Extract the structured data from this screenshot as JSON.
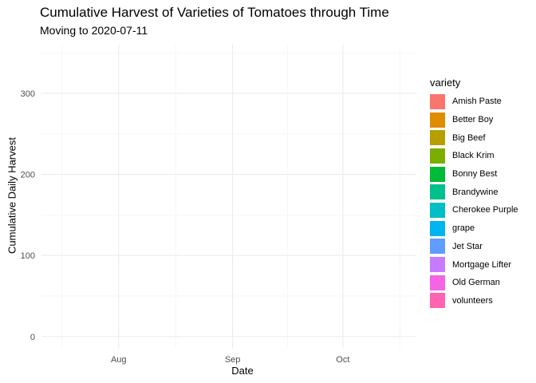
{
  "chart_data": {
    "type": "area",
    "title": "Cumulative Harvest of Varieties of Tomatoes through Time",
    "subtitle": "Moving to 2020-07-11",
    "xlabel": "Date",
    "ylabel": "Cumulative Daily Harvest",
    "x_ticks": [
      "Aug",
      "Sep",
      "Oct"
    ],
    "x_range": [
      "2020-07-11",
      "2020-10-21"
    ],
    "x_tick_dates": [
      "2020-08-01",
      "2020-09-01",
      "2020-10-01"
    ],
    "ylim": [
      -15,
      360
    ],
    "y_ticks": [
      0,
      100,
      200,
      300
    ],
    "grid": true,
    "legend_title": "variety",
    "legend_position": "right",
    "series": [
      {
        "name": "Amish Paste",
        "color": "#F8766D",
        "values": []
      },
      {
        "name": "Better Boy",
        "color": "#DE8C00",
        "values": []
      },
      {
        "name": "Big Beef",
        "color": "#B79F00",
        "values": []
      },
      {
        "name": "Black Krim",
        "color": "#7CAE00",
        "values": []
      },
      {
        "name": "Bonny Best",
        "color": "#00BA38",
        "values": []
      },
      {
        "name": "Brandywine",
        "color": "#00C08B",
        "values": []
      },
      {
        "name": "Cherokee Purple",
        "color": "#00BFC4",
        "values": []
      },
      {
        "name": "grape",
        "color": "#00B4F0",
        "values": []
      },
      {
        "name": "Jet Star",
        "color": "#619CFF",
        "values": []
      },
      {
        "name": "Mortgage Lifter",
        "color": "#C77CFF",
        "values": []
      },
      {
        "name": "Old German",
        "color": "#F564E3",
        "values": []
      },
      {
        "name": "volunteers",
        "color": "#FF64B0",
        "values": []
      }
    ]
  }
}
